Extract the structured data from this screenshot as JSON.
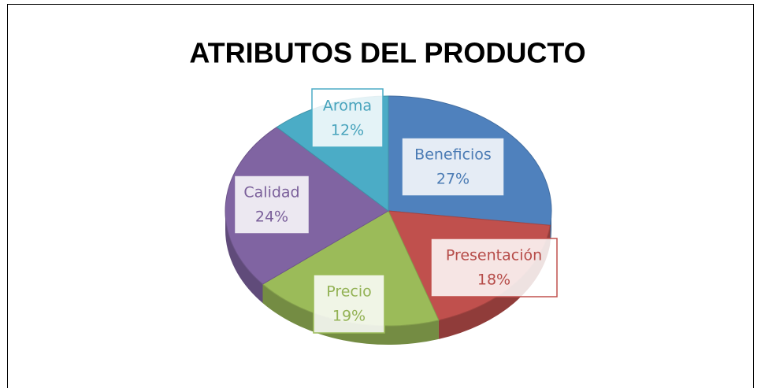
{
  "chart_data": {
    "type": "pie",
    "title": "ATRIBUTOS DEL PRODUCTO",
    "categories": [
      "Beneficios",
      "Presentación",
      "Precio",
      "Calidad",
      "Aroma"
    ],
    "values": [
      27,
      18,
      19,
      24,
      12
    ],
    "value_labels": [
      "27%",
      "18%",
      "19%",
      "24%",
      "12%"
    ],
    "colors": [
      "#4f81bd",
      "#c0504d",
      "#9bbb59",
      "#8064a2",
      "#4bacc6"
    ]
  }
}
